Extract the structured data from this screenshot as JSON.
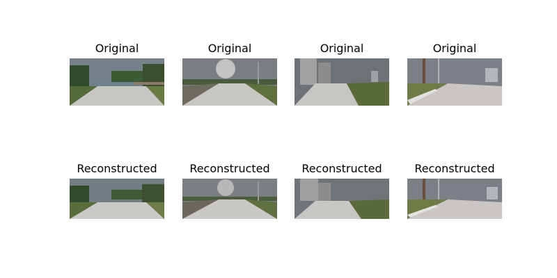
{
  "panels": {
    "top": [
      {
        "title": "Original"
      },
      {
        "title": "Original"
      },
      {
        "title": "Original"
      },
      {
        "title": "Original"
      }
    ],
    "bottom": [
      {
        "title": "Reconstructed"
      },
      {
        "title": "Reconstructed"
      },
      {
        "title": "Reconstructed"
      },
      {
        "title": "Reconstructed"
      }
    ]
  },
  "colors": {
    "background": "#ffffff",
    "sky": "#7c838b",
    "road": "#c9c7c4",
    "grass": "#5f6f3e",
    "trees": "#2f4a2c"
  }
}
